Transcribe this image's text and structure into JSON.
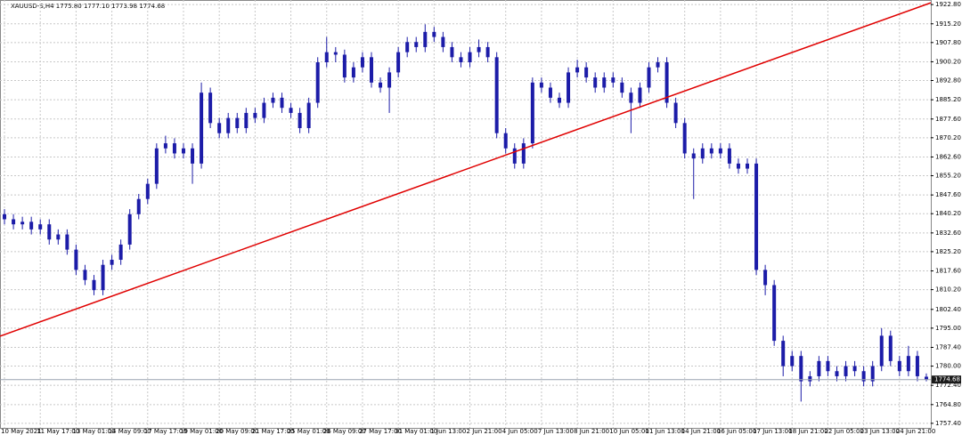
{
  "chart_data": {
    "type": "candlestick",
    "title": "XAUUSD-S,H4  1775.80 1777.10 1773.98 1774.68",
    "color": "#1c1ca8",
    "grid": true,
    "ylim": [
      1755.6,
      1924.6
    ],
    "yticks": [
      {
        "value": 1922.8,
        "label": "1922.80"
      },
      {
        "value": 1915.2,
        "label": "1915.20"
      },
      {
        "value": 1907.8,
        "label": "1907.80"
      },
      {
        "value": 1900.2,
        "label": "1900.20"
      },
      {
        "value": 1892.8,
        "label": "1892.80"
      },
      {
        "value": 1885.2,
        "label": "1885.20"
      },
      {
        "value": 1877.6,
        "label": "1877.60"
      },
      {
        "value": 1870.2,
        "label": "1870.20"
      },
      {
        "value": 1862.6,
        "label": "1862.60"
      },
      {
        "value": 1855.2,
        "label": "1855.20"
      },
      {
        "value": 1847.6,
        "label": "1847.60"
      },
      {
        "value": 1840.2,
        "label": "1840.20"
      },
      {
        "value": 1832.6,
        "label": "1832.60"
      },
      {
        "value": 1825.2,
        "label": "1825.20"
      },
      {
        "value": 1817.6,
        "label": "1817.60"
      },
      {
        "value": 1810.2,
        "label": "1810.20"
      },
      {
        "value": 1802.4,
        "label": "1802.40"
      },
      {
        "value": 1795,
        "label": "1795.00"
      },
      {
        "value": 1787.4,
        "label": "1787.40"
      },
      {
        "value": 1780,
        "label": "1780.00"
      },
      {
        "value": 1772.4,
        "label": "1772.40"
      },
      {
        "value": 1764.8,
        "label": "1764.80"
      },
      {
        "value": 1757.4,
        "label": "1757.40"
      }
    ],
    "last_price": {
      "value": 1774.68,
      "label": "1774.68"
    },
    "trendline": {
      "color": "#e00000",
      "start": 1791.8,
      "end": 1923.5
    },
    "categories": [
      "10 May 2021",
      null,
      null,
      null,
      "11 May 17:00",
      null,
      null,
      null,
      "13 May 01:00",
      null,
      null,
      null,
      "14 May 09:00",
      null,
      null,
      null,
      "17 May 17:00",
      null,
      null,
      null,
      "19 May 01:00",
      null,
      null,
      null,
      "20 May 09:00",
      null,
      null,
      null,
      "21 May 17:00",
      null,
      null,
      null,
      "25 May 01:00",
      null,
      null,
      null,
      "26 May 09:00",
      null,
      null,
      null,
      "27 May 17:00",
      null,
      null,
      null,
      "31 May 01:00",
      null,
      null,
      null,
      "1 Jun 13:00",
      null,
      null,
      null,
      "2 Jun 21:00",
      null,
      null,
      null,
      "4 Jun 05:00",
      null,
      null,
      null,
      "7 Jun 13:00",
      null,
      null,
      null,
      "8 Jun 21:00",
      null,
      null,
      null,
      "10 Jun 05:00",
      null,
      null,
      null,
      "11 Jun 13:00",
      null,
      null,
      null,
      "14 Jun 21:00",
      null,
      null,
      null,
      "16 Jun 05:00",
      null,
      null,
      null,
      "17 Jun 13:00",
      null,
      null,
      null,
      "18 Jun 21:00",
      null,
      null,
      null,
      "22 Jun 05:00",
      null,
      null,
      null,
      "23 Jun 13:00",
      null,
      null,
      null,
      "24 Jun 21:00",
      null,
      null,
      null
    ],
    "open": [
      1840,
      1838,
      1836,
      1837,
      1834,
      1836,
      1830,
      1832,
      1826,
      1818,
      1814,
      1810,
      1820,
      1822,
      1828,
      1840,
      1846,
      1852,
      1866,
      1868,
      1864,
      1866,
      1860,
      1888,
      1876,
      1872,
      1878,
      1874,
      1880,
      1878,
      1884,
      1886,
      1882,
      1880,
      1874,
      1884,
      1900,
      1904,
      1903,
      1894,
      1898,
      1902,
      1892,
      1890,
      1896,
      1904,
      1908,
      1906,
      1912,
      1910,
      1906,
      1902,
      1900,
      1904,
      1906,
      1902,
      1872,
      1866,
      1860,
      1868,
      1892,
      1890,
      1886,
      1884,
      1896,
      1898,
      1894,
      1890,
      1894,
      1892,
      1888,
      1884,
      1890,
      1898,
      1900,
      1884,
      1876,
      1864,
      1862,
      1866,
      1864,
      1866,
      1860,
      1858,
      1860,
      1818,
      1812,
      1790,
      1780,
      1784,
      1774,
      1776,
      1782,
      1778,
      1776,
      1780,
      1778,
      1774,
      1780,
      1792,
      1782,
      1778,
      1784,
      1775.8
    ],
    "high": [
      1842,
      1840,
      1839,
      1839,
      1838,
      1838,
      1834,
      1834,
      1828,
      1820,
      1816,
      1822,
      1824,
      1830,
      1842,
      1848,
      1854,
      1868,
      1871,
      1870,
      1868,
      1868,
      1892,
      1890,
      1878,
      1880,
      1880,
      1882,
      1882,
      1886,
      1888,
      1888,
      1884,
      1882,
      1886,
      1902,
      1910,
      1906,
      1905,
      1900,
      1904,
      1904,
      1894,
      1898,
      1906,
      1910,
      1910,
      1915,
      1914,
      1912,
      1908,
      1904,
      1906,
      1909,
      1908,
      1904,
      1874,
      1868,
      1870,
      1894,
      1894,
      1892,
      1888,
      1898,
      1901,
      1900,
      1896,
      1896,
      1896,
      1894,
      1890,
      1892,
      1900,
      1902,
      1902,
      1886,
      1878,
      1866,
      1868,
      1868,
      1868,
      1868,
      1862,
      1862,
      1862,
      1820,
      1814,
      1792,
      1786,
      1786,
      1778,
      1784,
      1784,
      1780,
      1782,
      1782,
      1780,
      1782,
      1795,
      1794,
      1784,
      1788,
      1786,
      1777.1
    ],
    "low": [
      1836,
      1834,
      1834,
      1832,
      1832,
      1828,
      1828,
      1824,
      1816,
      1812,
      1808,
      1808,
      1818,
      1820,
      1826,
      1838,
      1844,
      1850,
      1864,
      1862,
      1862,
      1852,
      1858,
      1874,
      1870,
      1870,
      1872,
      1872,
      1876,
      1876,
      1882,
      1880,
      1878,
      1872,
      1872,
      1882,
      1898,
      1900,
      1892,
      1892,
      1896,
      1890,
      1888,
      1880,
      1894,
      1902,
      1904,
      1904,
      1908,
      1904,
      1900,
      1898,
      1898,
      1902,
      1900,
      1870,
      1864,
      1858,
      1858,
      1866,
      1888,
      1884,
      1882,
      1882,
      1894,
      1892,
      1888,
      1888,
      1890,
      1886,
      1872,
      1882,
      1888,
      1896,
      1882,
      1874,
      1862,
      1846,
      1860,
      1862,
      1862,
      1858,
      1856,
      1856,
      1816,
      1808,
      1788,
      1776,
      1778,
      1766,
      1772,
      1774,
      1776,
      1774,
      1774,
      1776,
      1772,
      1772,
      1778,
      1780,
      1776,
      1776,
      1774,
      1773.98
    ],
    "close": [
      1838,
      1836,
      1837,
      1834,
      1836,
      1830,
      1832,
      1826,
      1818,
      1814,
      1810,
      1820,
      1822,
      1828,
      1840,
      1846,
      1852,
      1866,
      1868,
      1864,
      1866,
      1860,
      1888,
      1876,
      1872,
      1878,
      1874,
      1880,
      1878,
      1884,
      1886,
      1882,
      1880,
      1874,
      1884,
      1900,
      1904,
      1903,
      1894,
      1898,
      1902,
      1892,
      1890,
      1896,
      1904,
      1908,
      1906,
      1912,
      1910,
      1906,
      1902,
      1900,
      1904,
      1906,
      1902,
      1872,
      1866,
      1860,
      1868,
      1892,
      1890,
      1886,
      1884,
      1896,
      1898,
      1894,
      1890,
      1894,
      1892,
      1888,
      1884,
      1890,
      1898,
      1900,
      1884,
      1876,
      1864,
      1862,
      1866,
      1864,
      1866,
      1860,
      1858,
      1860,
      1818,
      1812,
      1790,
      1780,
      1784,
      1774,
      1776,
      1782,
      1778,
      1776,
      1780,
      1778,
      1774,
      1780,
      1792,
      1782,
      1778,
      1784,
      1776,
      1774.68
    ]
  }
}
